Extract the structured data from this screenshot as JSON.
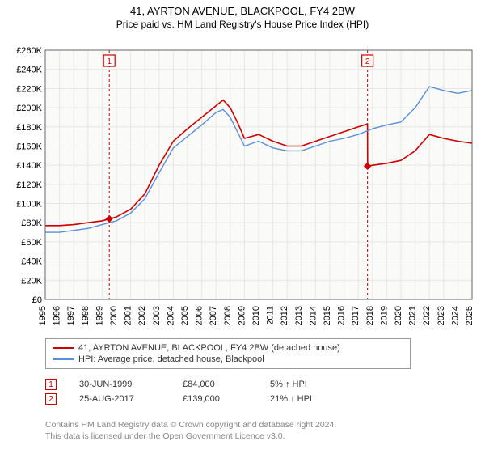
{
  "title_line1": "41, AYRTON AVENUE, BLACKPOOL, FY4 2BW",
  "title_line2": "Price paid vs. HM Land Registry's House Price Index (HPI)",
  "chart": {
    "type": "line",
    "background_color": "#ffffff",
    "plot_bg_color": "#fafaf8",
    "grid_color": "#e6e6e6",
    "axis_color": "#666666",
    "title_fontsize": 13,
    "label_fontsize": 11,
    "x_years": [
      1995,
      1996,
      1997,
      1998,
      1999,
      2000,
      2001,
      2002,
      2003,
      2004,
      2005,
      2006,
      2007,
      2008,
      2009,
      2010,
      2011,
      2012,
      2013,
      2014,
      2015,
      2016,
      2017,
      2018,
      2019,
      2020,
      2021,
      2022,
      2023,
      2024,
      2025
    ],
    "ylim": [
      0,
      260000
    ],
    "ytick_step": 20000,
    "yticks": [
      "£0",
      "£20K",
      "£40K",
      "£60K",
      "£80K",
      "£100K",
      "£120K",
      "£140K",
      "£160K",
      "£180K",
      "£200K",
      "£220K",
      "£240K",
      "£260K"
    ],
    "series": [
      {
        "name": "price_paid",
        "label": "41, AYRTON AVENUE, BLACKPOOL, FY4 2BW (detached house)",
        "color": "#cc0000",
        "line_width": 1.6,
        "data": [
          [
            1995,
            77000
          ],
          [
            1996,
            77000
          ],
          [
            1997,
            78000
          ],
          [
            1998,
            80000
          ],
          [
            1999,
            82000
          ],
          [
            1999.5,
            84000
          ],
          [
            2000,
            86000
          ],
          [
            2001,
            94000
          ],
          [
            2002,
            110000
          ],
          [
            2003,
            140000
          ],
          [
            2004,
            165000
          ],
          [
            2005,
            178000
          ],
          [
            2006,
            190000
          ],
          [
            2007,
            202000
          ],
          [
            2007.5,
            208000
          ],
          [
            2008,
            200000
          ],
          [
            2008.5,
            185000
          ],
          [
            2009,
            168000
          ],
          [
            2010,
            172000
          ],
          [
            2011,
            165000
          ],
          [
            2012,
            160000
          ],
          [
            2013,
            160000
          ],
          [
            2014,
            165000
          ],
          [
            2015,
            170000
          ],
          [
            2016,
            175000
          ],
          [
            2017,
            180000
          ],
          [
            2017.65,
            183000
          ],
          [
            2017.66,
            139000
          ],
          [
            2018,
            140000
          ],
          [
            2019,
            142000
          ],
          [
            2020,
            145000
          ],
          [
            2021,
            155000
          ],
          [
            2022,
            172000
          ],
          [
            2023,
            168000
          ],
          [
            2024,
            165000
          ],
          [
            2025,
            163000
          ]
        ]
      },
      {
        "name": "hpi",
        "label": "HPI: Average price, detached house, Blackpool",
        "color": "#5a8fd6",
        "line_width": 1.4,
        "data": [
          [
            1995,
            70000
          ],
          [
            1996,
            70000
          ],
          [
            1997,
            72000
          ],
          [
            1998,
            74000
          ],
          [
            1999,
            78000
          ],
          [
            2000,
            82000
          ],
          [
            2001,
            90000
          ],
          [
            2002,
            105000
          ],
          [
            2003,
            132000
          ],
          [
            2004,
            158000
          ],
          [
            2005,
            170000
          ],
          [
            2006,
            182000
          ],
          [
            2007,
            195000
          ],
          [
            2007.5,
            198000
          ],
          [
            2008,
            190000
          ],
          [
            2008.5,
            175000
          ],
          [
            2009,
            160000
          ],
          [
            2010,
            165000
          ],
          [
            2011,
            158000
          ],
          [
            2012,
            155000
          ],
          [
            2013,
            155000
          ],
          [
            2014,
            160000
          ],
          [
            2015,
            165000
          ],
          [
            2016,
            168000
          ],
          [
            2017,
            172000
          ],
          [
            2018,
            178000
          ],
          [
            2019,
            182000
          ],
          [
            2020,
            185000
          ],
          [
            2021,
            200000
          ],
          [
            2022,
            222000
          ],
          [
            2023,
            218000
          ],
          [
            2024,
            215000
          ],
          [
            2025,
            218000
          ]
        ]
      }
    ],
    "sale_markers": [
      {
        "id": "1",
        "x": 1999.5,
        "y": 84000
      },
      {
        "id": "2",
        "x": 2017.65,
        "y": 139000
      }
    ],
    "vlines": [
      {
        "x": 1999.5,
        "color": "#cc0000",
        "dash": "3,3"
      },
      {
        "x": 2017.65,
        "color": "#cc0000",
        "dash": "3,3"
      }
    ]
  },
  "legend": {
    "border_color": "#999999",
    "items": [
      {
        "color": "#cc0000",
        "label": "41, AYRTON AVENUE, BLACKPOOL, FY4 2BW (detached house)"
      },
      {
        "color": "#5a8fd6",
        "label": "HPI: Average price, detached house, Blackpool"
      }
    ]
  },
  "transactions": [
    {
      "id": "1",
      "date": "30-JUN-1999",
      "price": "£84,000",
      "pct": "5% ↑ HPI"
    },
    {
      "id": "2",
      "date": "25-AUG-2017",
      "price": "£139,000",
      "pct": "21% ↓ HPI"
    }
  ],
  "attribution_line1": "Contains HM Land Registry data © Crown copyright and database right 2024.",
  "attribution_line2": "This data is licensed under the Open Government Licence v3.0."
}
